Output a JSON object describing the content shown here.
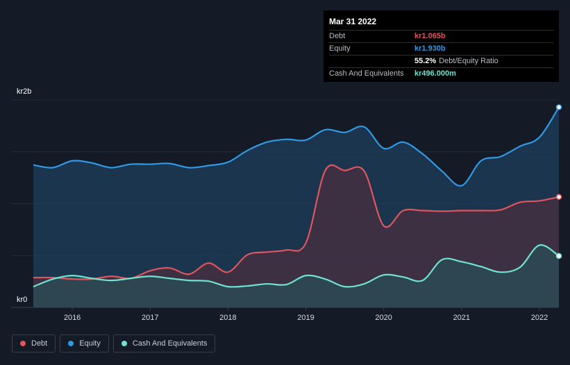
{
  "tooltip": {
    "date": "Mar 31 2022",
    "rows": [
      {
        "label": "Debt",
        "value": "kr1.065b",
        "color": "#e0555f",
        "extra": ""
      },
      {
        "label": "Equity",
        "value": "kr1.930b",
        "color": "#2f9ae6",
        "extra": ""
      },
      {
        "label": "",
        "value": "55.2%",
        "color": "#ffffff",
        "extra": "Debt/Equity Ratio"
      },
      {
        "label": "Cash And Equivalents",
        "value": "kr496.000m",
        "color": "#6fe3d2",
        "extra": ""
      }
    ]
  },
  "legend": [
    {
      "label": "Debt",
      "color": "#e0555f"
    },
    {
      "label": "Equity",
      "color": "#2f9ae6"
    },
    {
      "label": "Cash And Equivalents",
      "color": "#6fe3d2"
    }
  ],
  "chart_data": {
    "type": "area",
    "ylabel_top": "kr2b",
    "ylabel_bottom": "kr0",
    "ylim": [
      0,
      2000
    ],
    "xlim": [
      2015.5,
      2022.25
    ],
    "xticks": [
      "2016",
      "2017",
      "2018",
      "2019",
      "2020",
      "2021",
      "2022"
    ],
    "xtick_values": [
      2016,
      2017,
      2018,
      2019,
      2020,
      2021,
      2022
    ],
    "grid": true,
    "series": [
      {
        "name": "Equity",
        "color": "#2f9ae6",
        "fill": "#1f3f5e",
        "x": [
          2015.5,
          2015.75,
          2016.0,
          2016.25,
          2016.5,
          2016.75,
          2017.0,
          2017.25,
          2017.5,
          2017.75,
          2018.0,
          2018.25,
          2018.5,
          2018.75,
          2019.0,
          2019.25,
          2019.5,
          2019.75,
          2020.0,
          2020.25,
          2020.5,
          2020.75,
          2021.0,
          2021.25,
          2021.5,
          2021.75,
          2022.0,
          2022.25
        ],
        "values": [
          1373,
          1347,
          1413,
          1393,
          1347,
          1380,
          1380,
          1387,
          1347,
          1367,
          1400,
          1513,
          1593,
          1620,
          1613,
          1713,
          1687,
          1740,
          1533,
          1593,
          1480,
          1313,
          1173,
          1413,
          1453,
          1553,
          1640,
          1930
        ]
      },
      {
        "name": "Debt",
        "color": "#e0555f",
        "fill": "#4a2f3f",
        "x": [
          2015.5,
          2015.75,
          2016.0,
          2016.25,
          2016.5,
          2016.75,
          2017.0,
          2017.25,
          2017.5,
          2017.75,
          2018.0,
          2018.25,
          2018.5,
          2018.75,
          2019.0,
          2019.25,
          2019.5,
          2019.75,
          2020.0,
          2020.25,
          2020.5,
          2020.75,
          2021.0,
          2021.25,
          2021.5,
          2021.75,
          2022.0,
          2022.25
        ],
        "values": [
          287,
          287,
          273,
          273,
          300,
          280,
          353,
          380,
          320,
          427,
          340,
          507,
          533,
          553,
          620,
          1320,
          1320,
          1313,
          787,
          933,
          933,
          927,
          933,
          933,
          940,
          1013,
          1027,
          1065
        ]
      },
      {
        "name": "Cash And Equivalents",
        "color": "#6fe3d2",
        "fill": "#2a4d55",
        "x": [
          2015.5,
          2015.75,
          2016.0,
          2016.25,
          2016.5,
          2016.75,
          2017.0,
          2017.25,
          2017.5,
          2017.75,
          2018.0,
          2018.25,
          2018.5,
          2018.75,
          2019.0,
          2019.25,
          2019.5,
          2019.75,
          2020.0,
          2020.25,
          2020.5,
          2020.75,
          2021.0,
          2021.25,
          2021.5,
          2021.75,
          2022.0,
          2022.25
        ],
        "values": [
          200,
          273,
          307,
          280,
          260,
          280,
          300,
          280,
          260,
          253,
          200,
          207,
          227,
          220,
          307,
          273,
          200,
          227,
          313,
          293,
          260,
          460,
          440,
          393,
          340,
          387,
          600,
          496
        ]
      }
    ]
  }
}
